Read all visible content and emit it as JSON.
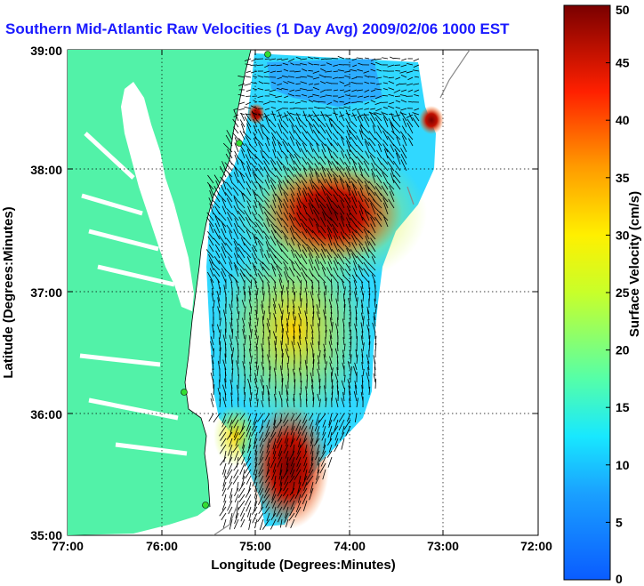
{
  "chart_data": {
    "type": "heatmap",
    "title": "Southern Mid-Atlantic Raw Velocities (1 Day Avg) 2009/02/06 1000 EST",
    "xlabel": "Longitude (Degrees:Minutes)",
    "ylabel": "Latitude (Degrees:Minutes)",
    "x_ticks": [
      "77:00",
      "76:00",
      "75:00",
      "74:00",
      "73:00",
      "72:00"
    ],
    "y_ticks": [
      "39:00",
      "38:00",
      "37:00",
      "36:00",
      "35:00"
    ],
    "xlim": [
      -77,
      -72
    ],
    "ylim": [
      35,
      39
    ],
    "grid": true,
    "colorbar": {
      "label": "Surface Velocity (cm/s)",
      "min": 0,
      "max": 50,
      "ticks": [
        0,
        5,
        10,
        15,
        20,
        25,
        30,
        35,
        40,
        45,
        50
      ]
    },
    "velocity_field": [
      {
        "lon": -74.5,
        "lat": 37.6,
        "speed": 48
      },
      {
        "lon": -74.2,
        "lat": 37.9,
        "speed": 46
      },
      {
        "lon": -74.6,
        "lat": 37.2,
        "speed": 40
      },
      {
        "lon": -74.8,
        "lat": 38.7,
        "speed": 10
      },
      {
        "lon": -75.2,
        "lat": 36.5,
        "speed": 28
      },
      {
        "lon": -74.9,
        "lat": 36.7,
        "speed": 25
      },
      {
        "lon": -74.0,
        "lat": 36.9,
        "speed": 15
      },
      {
        "lon": -74.8,
        "lat": 35.4,
        "speed": 44
      },
      {
        "lon": -75.4,
        "lat": 35.8,
        "speed": 30
      },
      {
        "lon": -73.1,
        "lat": 38.4,
        "speed": 36
      }
    ]
  },
  "colors": {
    "land": "#52f2a8",
    "water_bg": "#ffffff",
    "title": "#1a1aff",
    "station": "#33dd33"
  }
}
